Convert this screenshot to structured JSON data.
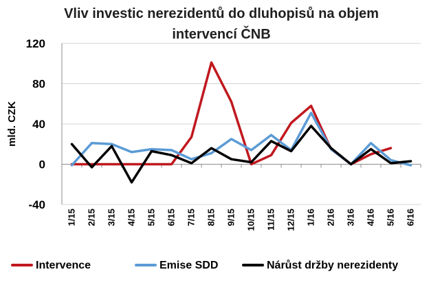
{
  "chart_data": {
    "type": "line",
    "title_lines": [
      "Vliv investic nerezidentů do dluhopisů na objem",
      "intervencí ČNB"
    ],
    "ylabel": "mld. CZK",
    "xlabel": "",
    "ylim": [
      -40,
      120
    ],
    "yticks": [
      -40,
      0,
      40,
      80,
      120
    ],
    "categories": [
      "1/15",
      "2/15",
      "3/15",
      "4/15",
      "5/15",
      "6/15",
      "7/15",
      "8/15",
      "9/15",
      "10/15",
      "11/15",
      "12/15",
      "1/16",
      "2/16",
      "3/16",
      "4/16",
      "5/16",
      "6/16"
    ],
    "series": [
      {
        "name": "Intervence",
        "color": "#c0181e",
        "values": [
          0,
          0,
          0,
          0,
          0,
          0,
          27,
          101,
          62,
          0,
          9,
          41,
          58,
          15,
          0,
          10,
          16,
          null
        ]
      },
      {
        "name": "Emise SDD",
        "color": "#5b9bd5",
        "values": [
          -1,
          21,
          20,
          12,
          15,
          14,
          5,
          11,
          25,
          14,
          29,
          14,
          51,
          15,
          0,
          21,
          4,
          -1
        ]
      },
      {
        "name": "Nárůst držby nerezidenty",
        "color": "#000000",
        "values": [
          20,
          -3,
          18,
          -18,
          13,
          9,
          1,
          16,
          5,
          2,
          23,
          13,
          38,
          16,
          0,
          15,
          1,
          3
        ]
      }
    ],
    "legend_position": "bottom",
    "grid": "horizontal"
  }
}
